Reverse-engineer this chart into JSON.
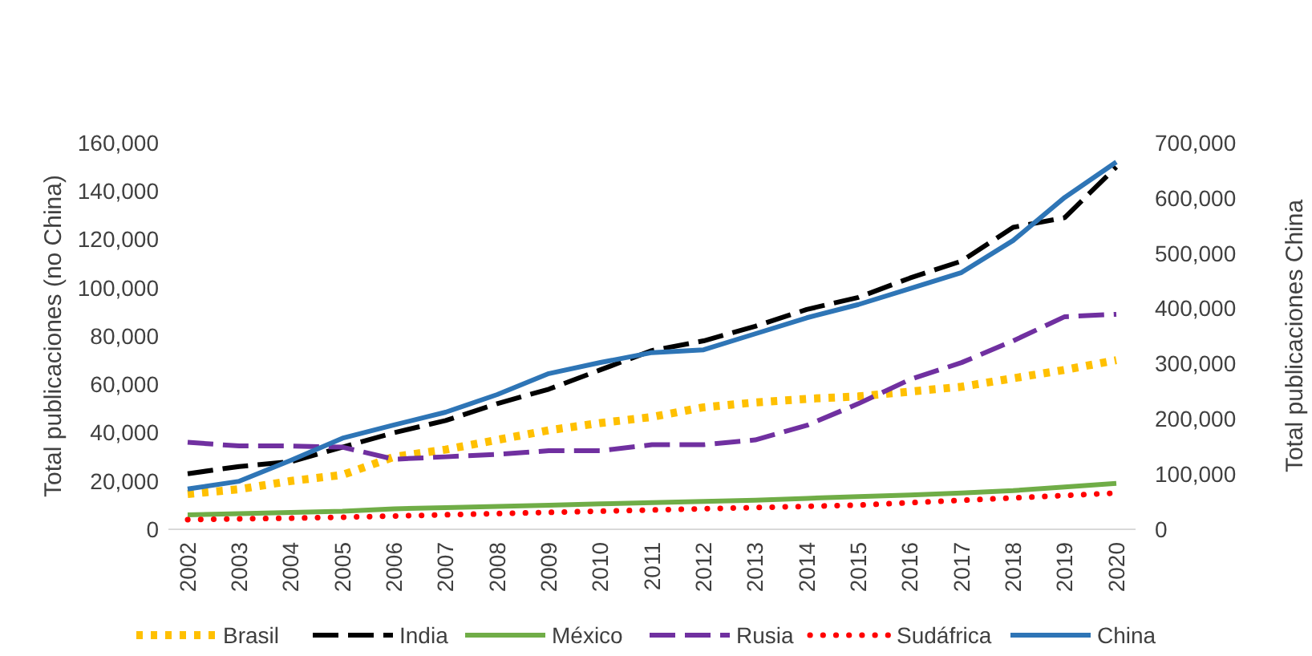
{
  "chart_data": {
    "type": "line",
    "ylabel": "Total publicaciones (no China)",
    "y2label": "Total publicaciones China",
    "categories": [
      "2002",
      "2003",
      "2004",
      "2005",
      "2006",
      "2007",
      "2008",
      "2009",
      "2010",
      "2011",
      "2012",
      "2013",
      "2014",
      "2015",
      "2016",
      "2017",
      "2018",
      "2019",
      "2020"
    ],
    "ylim": [
      0,
      160000
    ],
    "yticks": [
      {
        "value": 0,
        "label": "0"
      },
      {
        "value": 20000,
        "label": "20,000"
      },
      {
        "value": 40000,
        "label": "40,000"
      },
      {
        "value": 60000,
        "label": "60,000"
      },
      {
        "value": 80000,
        "label": "80,000"
      },
      {
        "value": 100000,
        "label": "100,000"
      },
      {
        "value": 120000,
        "label": "120,000"
      },
      {
        "value": 140000,
        "label": "140,000"
      },
      {
        "value": 160000,
        "label": "160,000"
      }
    ],
    "y2lim": [
      0,
      700000
    ],
    "y2ticks": [
      {
        "value": 0,
        "label": "0"
      },
      {
        "value": 100000,
        "label": "100,000"
      },
      {
        "value": 200000,
        "label": "200,000"
      },
      {
        "value": 300000,
        "label": "300,000"
      },
      {
        "value": 400000,
        "label": "400,000"
      },
      {
        "value": 500000,
        "label": "500,000"
      },
      {
        "value": 600000,
        "label": "600,000"
      },
      {
        "value": 700000,
        "label": "700,000"
      }
    ],
    "grid": false,
    "legend": "bottom",
    "marker": "none",
    "series": [
      {
        "name": "Brasil",
        "color": "#ffc000",
        "line_style": "dotted",
        "values": [
          14600,
          16600,
          20000,
          22500,
          30000,
          33000,
          37000,
          41000,
          44000,
          46500,
          50500,
          52500,
          54000,
          55000,
          57000,
          59000,
          62500,
          66000,
          70000
        ]
      },
      {
        "name": "India",
        "color": "#000000",
        "line_style": "dashed",
        "values": [
          23000,
          26000,
          28000,
          34000,
          40000,
          45000,
          52000,
          58000,
          66000,
          74000,
          78000,
          84000,
          91000,
          96000,
          104000,
          111000,
          125000,
          129000,
          150000
        ]
      },
      {
        "name": "México",
        "color": "#70ad47",
        "line_style": "solid",
        "values": [
          6000,
          6500,
          7000,
          7500,
          8500,
          9000,
          9500,
          10000,
          10500,
          11000,
          11500,
          12000,
          12800,
          13500,
          14200,
          15000,
          16000,
          17500,
          19000
        ]
      },
      {
        "name": "Rusia",
        "color": "#7030a0",
        "line_style": "dashed",
        "values": [
          36000,
          34500,
          34500,
          34000,
          29000,
          30000,
          31000,
          32500,
          32500,
          35000,
          35000,
          37000,
          43000,
          52000,
          62000,
          69000,
          78000,
          88000,
          89000
        ]
      },
      {
        "name": "Sudáfrica",
        "color": "#ff0000",
        "line_style": "dotted",
        "values": [
          4000,
          4300,
          4600,
          5000,
          5500,
          6000,
          6500,
          7000,
          7500,
          8000,
          8500,
          9000,
          9500,
          10000,
          11000,
          12000,
          13000,
          14000,
          15000
        ]
      },
      {
        "name": "China",
        "color": "#2e75b6",
        "line_style": "solid",
        "axis": "y2",
        "values": [
          73000,
          87000,
          125000,
          165000,
          189000,
          212000,
          244000,
          282000,
          302000,
          320000,
          325000,
          354000,
          383000,
          407000,
          436000,
          465000,
          523000,
          601000,
          665000
        ]
      }
    ]
  }
}
